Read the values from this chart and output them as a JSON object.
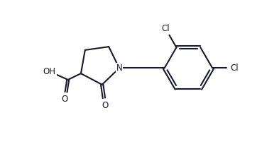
{
  "bg_color": "#ffffff",
  "line_color": "#1a1a2e",
  "line_width": 1.5,
  "font_size": 8.5,
  "figsize": [
    3.69,
    2.04
  ],
  "dpi": 100,
  "xlim": [
    0,
    10
  ],
  "ylim": [
    0,
    5.5
  ]
}
